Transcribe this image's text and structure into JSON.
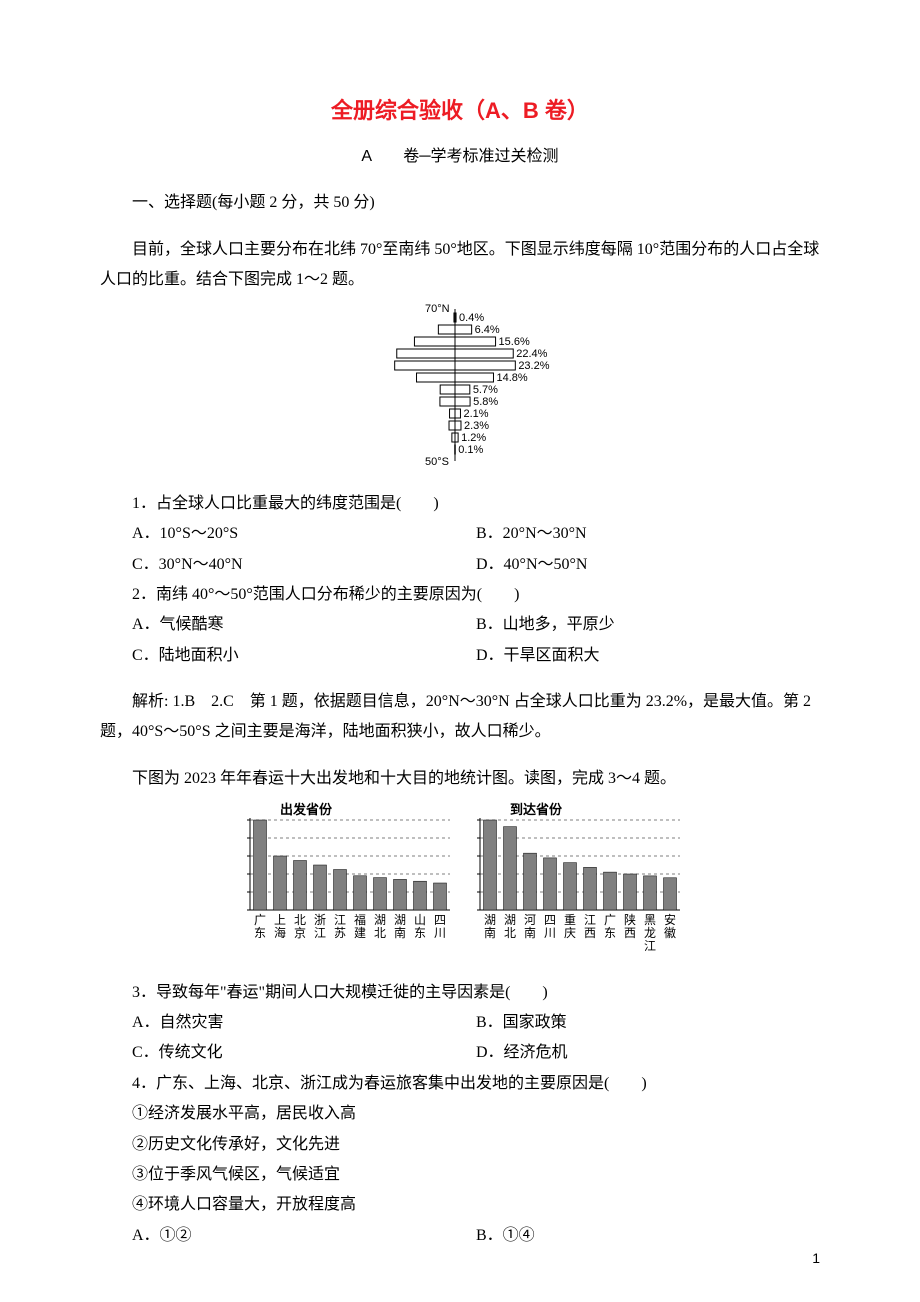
{
  "title": "全册综合验收（A、B 卷）",
  "subtitle": "A　　卷─学考标准过关检测",
  "section1": "一、选择题(每小题 2 分，共 50 分)",
  "intro1a": "目前，全球人口主要分布在北纬 70°至南纬 50°地区。下图显示纬度每隔 10°范围分布的人口占全球人口的比重。结合下图完成 1～2 题。",
  "pop_chart": {
    "type": "horizontal-bar-pyramid",
    "top_label": "70°N",
    "bottom_label": "50°S",
    "background_color": "#ffffff",
    "line_color": "#000000",
    "font_size": 11,
    "bars": [
      {
        "value": 0.4,
        "label": "0.4%",
        "width": 0.4
      },
      {
        "value": 6.4,
        "label": "6.4%",
        "width": 6.4
      },
      {
        "value": 15.6,
        "label": "15.6%",
        "width": 15.6
      },
      {
        "value": 22.4,
        "label": "22.4%",
        "width": 22.4
      },
      {
        "value": 23.2,
        "label": "23.2%",
        "width": 23.2
      },
      {
        "value": 14.8,
        "label": "14.8%",
        "width": 14.8
      },
      {
        "value": 5.7,
        "label": "5.7%",
        "width": 5.7
      },
      {
        "value": 5.8,
        "label": "5.8%",
        "width": 5.8
      },
      {
        "value": 2.1,
        "label": "2.1%",
        "width": 2.1
      },
      {
        "value": 2.3,
        "label": "2.3%",
        "width": 2.3
      },
      {
        "value": 1.2,
        "label": "1.2%",
        "width": 1.2
      },
      {
        "value": 0.1,
        "label": "0.1%",
        "width": 0.1
      }
    ]
  },
  "q1": {
    "stem": "1．占全球人口比重最大的纬度范围是(　　)",
    "a": "A．10°S～20°S",
    "b": "B．20°N～30°N",
    "c": "C．30°N～40°N",
    "d": "D．40°N～50°N"
  },
  "q2": {
    "stem": "2．南纬 40°～50°范围人口分布稀少的主要原因为(　　)",
    "a": "A．气候酷寒",
    "b": "B．山地多，平原少",
    "c": "C．陆地面积小",
    "d": "D．干旱区面积大"
  },
  "answer12": "解析: 1.B　2.C　第 1 题，依据题目信息，20°N～30°N 占全球人口比重为 23.2%，是最大值。第 2 题，40°S～50°S 之间主要是海洋，陆地面积狭小，故人口稀少。",
  "intro3": "下图为 2023 年年春运十大出发地和十大目的地统计图。读图，完成 3～4 题。",
  "bar_chart": {
    "type": "grouped-bar",
    "left_title": "出发省份",
    "right_title": "到达省份",
    "bar_color": "#808080",
    "grid_color": "#000000",
    "font_size": 11,
    "depart": {
      "labels": [
        "广东",
        "上海",
        "北京",
        "浙江",
        "江苏",
        "福建",
        "湖北",
        "湖南",
        "山东",
        "四川"
      ],
      "values": [
        100,
        60,
        55,
        50,
        45,
        38,
        36,
        34,
        32,
        30
      ]
    },
    "arrive": {
      "labels": [
        "湖南",
        "湖北",
        "河南",
        "四川",
        "重庆",
        "江西",
        "广东",
        "陕西",
        "黑龙江",
        "安徽"
      ],
      "values": [
        95,
        88,
        60,
        55,
        50,
        45,
        40,
        38,
        36,
        34
      ]
    }
  },
  "q3": {
    "stem": "3．导致每年\"春运\"期间人口大规模迁徙的主导因素是(　　)",
    "a": "A．自然灾害",
    "b": "B．国家政策",
    "c": "C．传统文化",
    "d": "D．经济危机"
  },
  "q4": {
    "stem": "4．广东、上海、北京、浙江成为春运旅客集中出发地的主要原因是(　　)",
    "s1": "①经济发展水平高，居民收入高",
    "s2": "②历史文化传承好，文化先进",
    "s3": "③位于季风气候区，气候适宜",
    "s4": "④环境人口容量大，开放程度高",
    "a": "A．①②",
    "b": "B．①④"
  },
  "page_number": "1"
}
